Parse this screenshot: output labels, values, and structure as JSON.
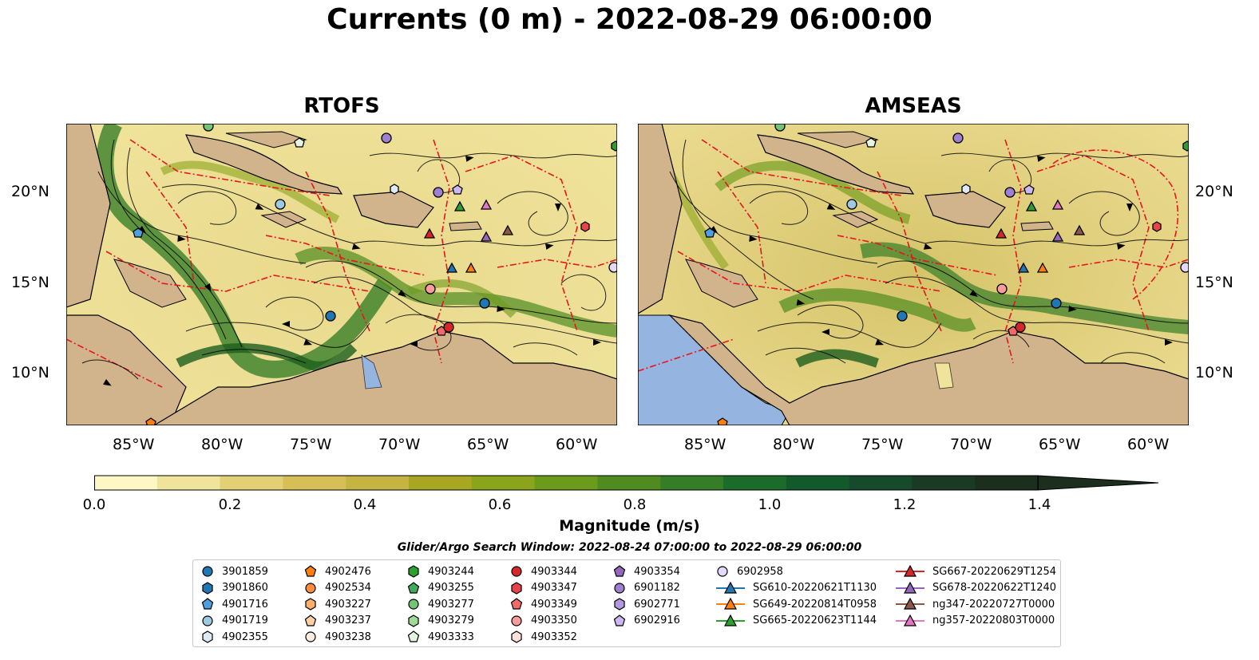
{
  "title": "Currents (0 m) - 2022-08-29 06:00:00",
  "panels": [
    {
      "id": "rtofs",
      "title": "RTOFS"
    },
    {
      "id": "amseas",
      "title": "AMSEAS"
    }
  ],
  "lat_labels": [
    "20°N",
    "15°N",
    "10°N"
  ],
  "lon_labels": [
    "85°W",
    "80°W",
    "75°W",
    "70°W",
    "65°W",
    "60°W"
  ],
  "colorbar": {
    "label": "Magnitude (m/s)",
    "min": 0.0,
    "max": 1.5,
    "extend": "max",
    "ticks": [
      "0.0",
      "0.2",
      "0.4",
      "0.6",
      "0.8",
      "1.0",
      "1.2",
      "1.4"
    ],
    "colors": [
      "#fdf7c6",
      "#f0e39b",
      "#e2cf76",
      "#d6bf57",
      "#c6b442",
      "#a9a624",
      "#8aa51c",
      "#6c9b1c",
      "#4f8b21",
      "#357d26",
      "#1d6b2a",
      "#125a2c",
      "#154a2a",
      "#1b3a25",
      "#1c2e1d"
    ]
  },
  "search_window": "Glider/Argo Search Window: 2022-08-24 07:00:00 to 2022-08-29 06:00:00",
  "map_colors": {
    "land": "#d2b48c",
    "water": "#95b5e0",
    "eez": "#e8141e",
    "coast": "#000000"
  },
  "legend": [
    {
      "label": "3901859",
      "marker": "circle",
      "color": "#1f77b4"
    },
    {
      "label": "3901860",
      "marker": "hexagon",
      "color": "#1f77b4"
    },
    {
      "label": "4901716",
      "marker": "pentagon",
      "color": "#4d9fe0"
    },
    {
      "label": "4901719",
      "marker": "circle",
      "color": "#9ecae1"
    },
    {
      "label": "4902355",
      "marker": "hexagon",
      "color": "#deebf7"
    },
    {
      "label": "4902476",
      "marker": "pentagon",
      "color": "#ff7f0e"
    },
    {
      "label": "4902534",
      "marker": "circle",
      "color": "#fd8d3c"
    },
    {
      "label": "4903227",
      "marker": "hexagon",
      "color": "#fdae6b"
    },
    {
      "label": "4903237",
      "marker": "pentagon",
      "color": "#fdd0a2"
    },
    {
      "label": "4903238",
      "marker": "circle",
      "color": "#feedde"
    },
    {
      "label": "4903244",
      "marker": "hexagon",
      "color": "#2ca02c"
    },
    {
      "label": "4903255",
      "marker": "pentagon",
      "color": "#41ab5d"
    },
    {
      "label": "4903277",
      "marker": "circle",
      "color": "#74c476"
    },
    {
      "label": "4903279",
      "marker": "hexagon",
      "color": "#a1d99b"
    },
    {
      "label": "4903333",
      "marker": "pentagon",
      "color": "#e5f5e0"
    },
    {
      "label": "4903344",
      "marker": "circle",
      "color": "#d62728"
    },
    {
      "label": "4903347",
      "marker": "hexagon",
      "color": "#e6444a"
    },
    {
      "label": "4903349",
      "marker": "pentagon",
      "color": "#f06a6a"
    },
    {
      "label": "4903350",
      "marker": "circle",
      "color": "#fc9c9c"
    },
    {
      "label": "4903352",
      "marker": "hexagon",
      "color": "#fde0dd"
    },
    {
      "label": "4903354",
      "marker": "pentagon",
      "color": "#9467bd"
    },
    {
      "label": "6901182",
      "marker": "circle",
      "color": "#9e7fd0"
    },
    {
      "label": "6902771",
      "marker": "hexagon",
      "color": "#b39ae0"
    },
    {
      "label": "6902916",
      "marker": "pentagon",
      "color": "#cbb8f0"
    },
    {
      "label": "6902958",
      "marker": "circle",
      "color": "#e4d9f8"
    },
    {
      "label": "SG610-20220621T1130",
      "marker": "triangle",
      "color": "#1f77b4"
    },
    {
      "label": "SG649-20220814T0958",
      "marker": "triangle",
      "color": "#ff7f0e"
    },
    {
      "label": "SG665-20220623T1144",
      "marker": "triangle",
      "color": "#2ca02c"
    },
    {
      "label": "SG667-20220629T1254",
      "marker": "triangle",
      "color": "#d62728"
    },
    {
      "label": "SG678-20220622T1240",
      "marker": "triangle",
      "color": "#9467bd"
    },
    {
      "label": "ng347-20220727T0000",
      "marker": "triangle",
      "color": "#8c564b"
    },
    {
      "label": "ng357-20220803T0000",
      "marker": "triangle",
      "color": "#e377c2"
    }
  ]
}
